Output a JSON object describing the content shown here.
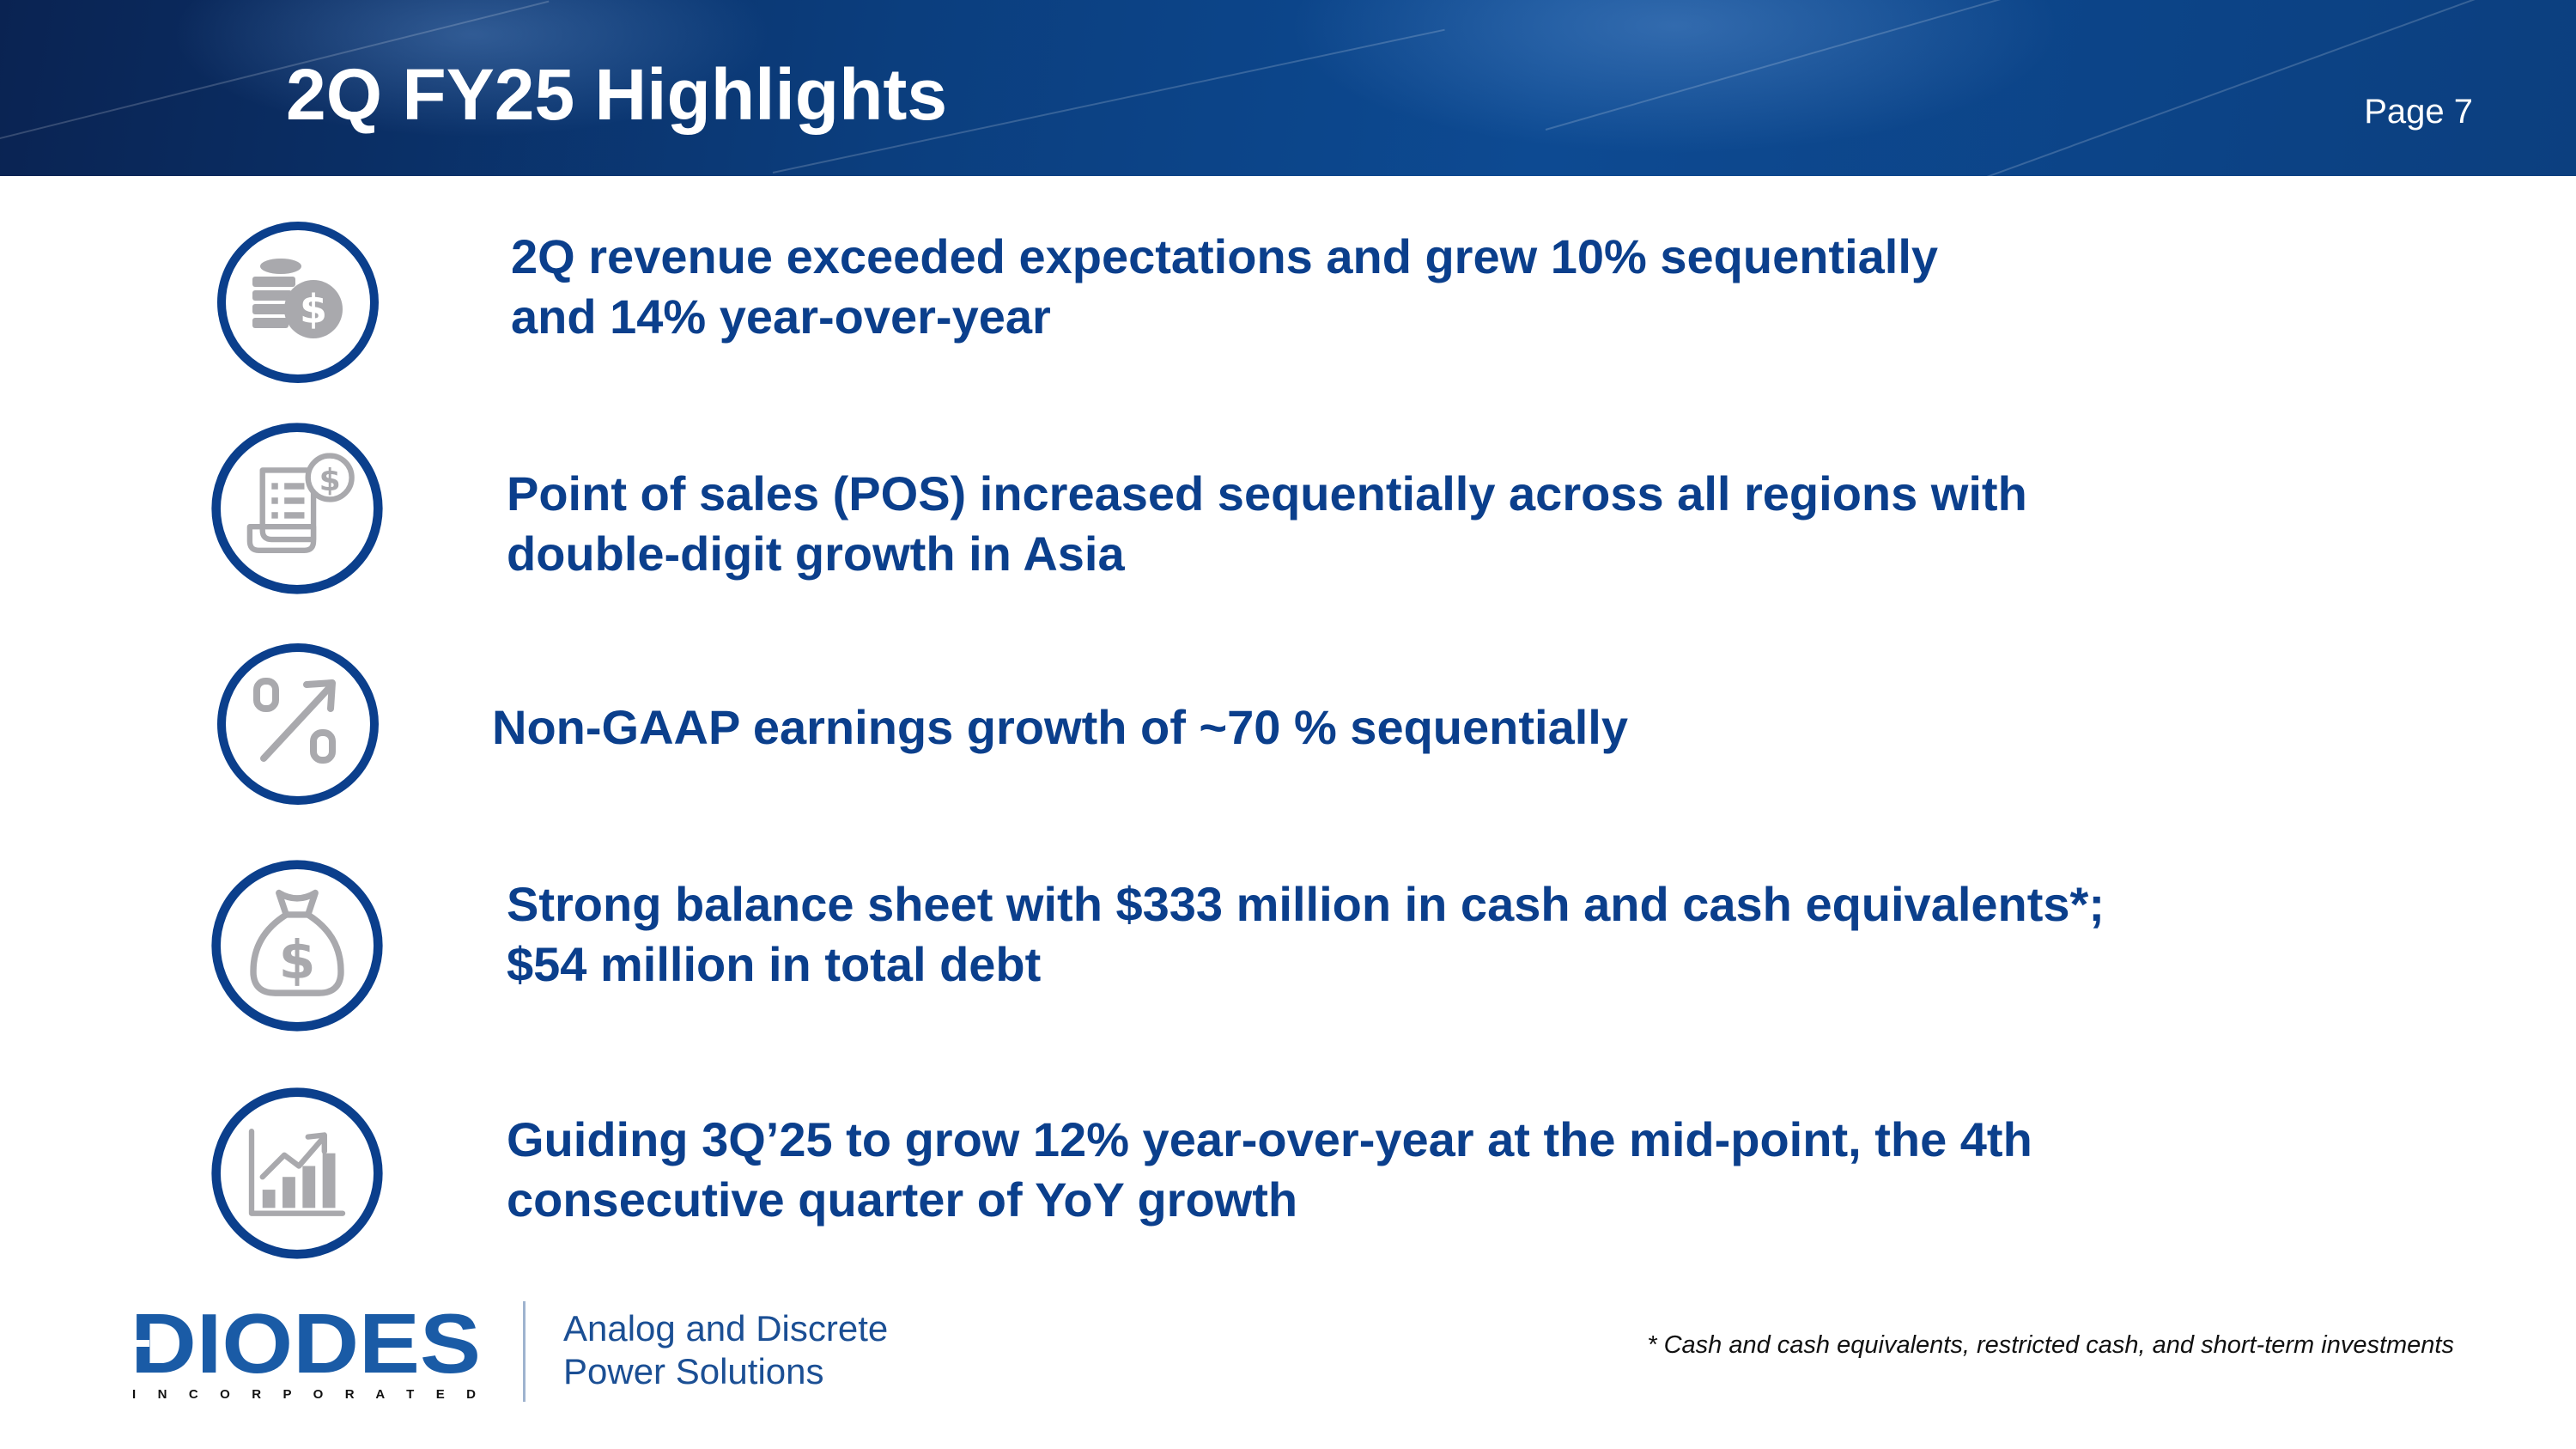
{
  "header": {
    "title": "2Q FY25 Highlights",
    "page_label": "Page 7"
  },
  "bullets": [
    {
      "icon": "coins-dollar-icon",
      "line1": "2Q revenue exceeded expectations and grew 10% sequentially",
      "line2": "and 14% year-over-year"
    },
    {
      "icon": "receipt-dollar-icon",
      "line1": "Point of sales (POS) increased sequentially across all regions with",
      "line2": "double-digit growth in Asia"
    },
    {
      "icon": "percent-up-icon",
      "line1": "Non-GAAP earnings growth of ~70 % sequentially",
      "line2": ""
    },
    {
      "icon": "money-bag-icon",
      "line1": "Strong balance sheet with $333 million in cash and cash equivalents*;",
      "line2": "$54 million in total debt"
    },
    {
      "icon": "growth-chart-icon",
      "line1": "Guiding 3Q’25 to grow 12% year-over-year at the mid-point, the 4th",
      "line2": "consecutive quarter of YoY growth"
    }
  ],
  "footer": {
    "logo_word": "DIODES",
    "logo_sub": "I N C O R P O R A T E D",
    "tagline_line1": "Analog and Discrete",
    "tagline_line2": "Power Solutions",
    "footnote": "* Cash and cash equivalents, restricted cash, and short-term investments"
  },
  "colors": {
    "brand_blue": "#0b3f8c",
    "icon_gray": "#a9a9ad",
    "header_dark": "#0a2352"
  }
}
